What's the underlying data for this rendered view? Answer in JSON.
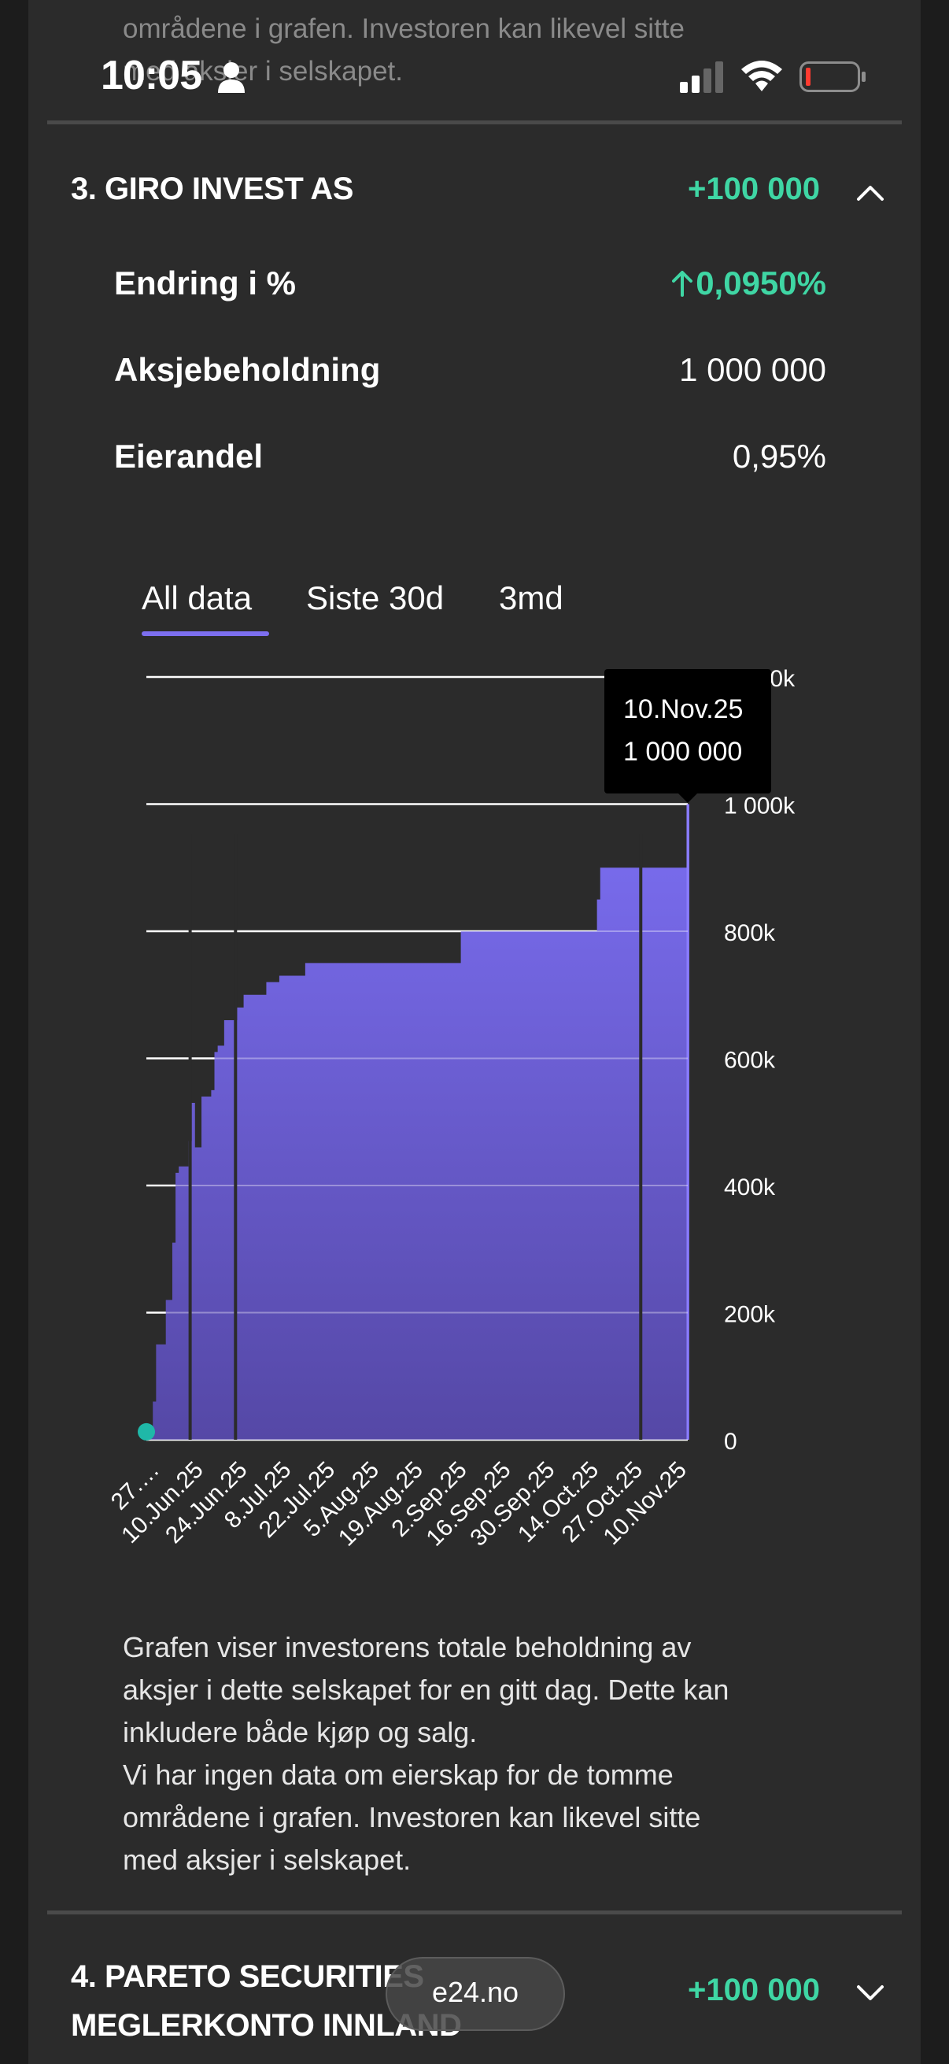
{
  "status_bar": {
    "time": "10:05",
    "person_icon": "person-icon",
    "signal_icon": "cellular-signal-icon",
    "wifi_icon": "wifi-icon",
    "battery_icon": "battery-low-icon"
  },
  "previous_section_tail": {
    "lines": [
      "områdene i grafen. Investoren kan likevel sitte",
      "med aksjer i selskapet."
    ]
  },
  "section": {
    "title": "3. GIRO INVEST AS",
    "delta": "+100 000",
    "expanded": true,
    "rows": [
      {
        "label": "Endring i %",
        "value": "0,0950%",
        "trend": "up"
      },
      {
        "label": "Aksjebeholdning",
        "value": "1 000 000"
      },
      {
        "label": "Eierandel",
        "value": "0,95%"
      }
    ],
    "tabs": [
      {
        "label": "All data",
        "active": true
      },
      {
        "label": "Siste 30d",
        "active": false
      },
      {
        "label": "3md",
        "active": false
      }
    ],
    "tooltip": {
      "date": "10.Nov.25",
      "value": "1 000 000"
    },
    "description": [
      "Grafen viser investorens totale beholdning av",
      "aksjer i dette selskapet for en gitt dag. Dette kan",
      "inkludere både kjøp og salg.",
      "Vi har ingen data om eierskap for de tomme",
      "områdene i grafen. Investoren kan likevel sitte",
      "med aksjer i selskapet."
    ]
  },
  "next_section": {
    "title_lines": [
      "4. PARETO SECURITIES",
      "MEGLERKONTO INNLAND"
    ],
    "delta": "+100 000",
    "expanded": false
  },
  "browser": {
    "url": "e24.no"
  },
  "colors": {
    "accent": "#7d6ff0",
    "positive": "#3fd6a4",
    "area_top": "#7b6ef2",
    "area_bottom": "#5548a6",
    "marker": "#1fb8a8"
  },
  "chart_data": {
    "type": "area",
    "title": "",
    "xlabel": "",
    "ylabel": "",
    "y_axis_side": "right",
    "ylim": [
      0,
      1200000
    ],
    "y_ticks": [
      0,
      200000,
      400000,
      600000,
      800000,
      1000000,
      1200000
    ],
    "y_tick_labels": [
      "0",
      "200k",
      "400k",
      "600k",
      "800k",
      "1 000k",
      "1 200k"
    ],
    "grid": true,
    "x_tick_labels": [
      "27.…",
      "10.Jun.25",
      "24.Jun.25",
      "8.Jul.25",
      "22.Jul.25",
      "5.Aug.25",
      "19.Aug.25",
      "2.Sep.25",
      "16.Sep.25",
      "30.Sep.25",
      "14.Oct.25",
      "27.Oct.25",
      "10.Nov.25"
    ],
    "series": [
      {
        "x": [
          "2025-05-27",
          "2025-05-29",
          "2025-05-30",
          "2025-06-02",
          "2025-06-04",
          "2025-06-05",
          "2025-06-06",
          "2025-06-09",
          "2025-06-10",
          "2025-06-11",
          "2025-06-13",
          "2025-06-16",
          "2025-06-17",
          "2025-06-18",
          "2025-06-20",
          "2025-06-24",
          "2025-06-26",
          "2025-06-30",
          "2025-07-03",
          "2025-07-07",
          "2025-07-11",
          "2025-07-15",
          "2025-09-01",
          "2025-09-16",
          "2025-10-13",
          "2025-10-14",
          "2025-11-10"
        ],
        "values": [
          10000,
          60000,
          150000,
          220000,
          310000,
          420000,
          430000,
          470000,
          530000,
          460000,
          540000,
          550000,
          610000,
          620000,
          660000,
          680000,
          700000,
          700000,
          720000,
          730000,
          730000,
          750000,
          800000,
          800000,
          850000,
          900000,
          1000000
        ]
      }
    ],
    "gaps": [
      {
        "from": "2025-06-09",
        "to": "2025-06-10"
      },
      {
        "from": "2025-06-23",
        "to": "2025-06-24"
      },
      {
        "from": "2025-10-26",
        "to": "2025-10-27"
      }
    ],
    "highlight": {
      "x": "2025-11-10",
      "value": 1000000
    }
  }
}
